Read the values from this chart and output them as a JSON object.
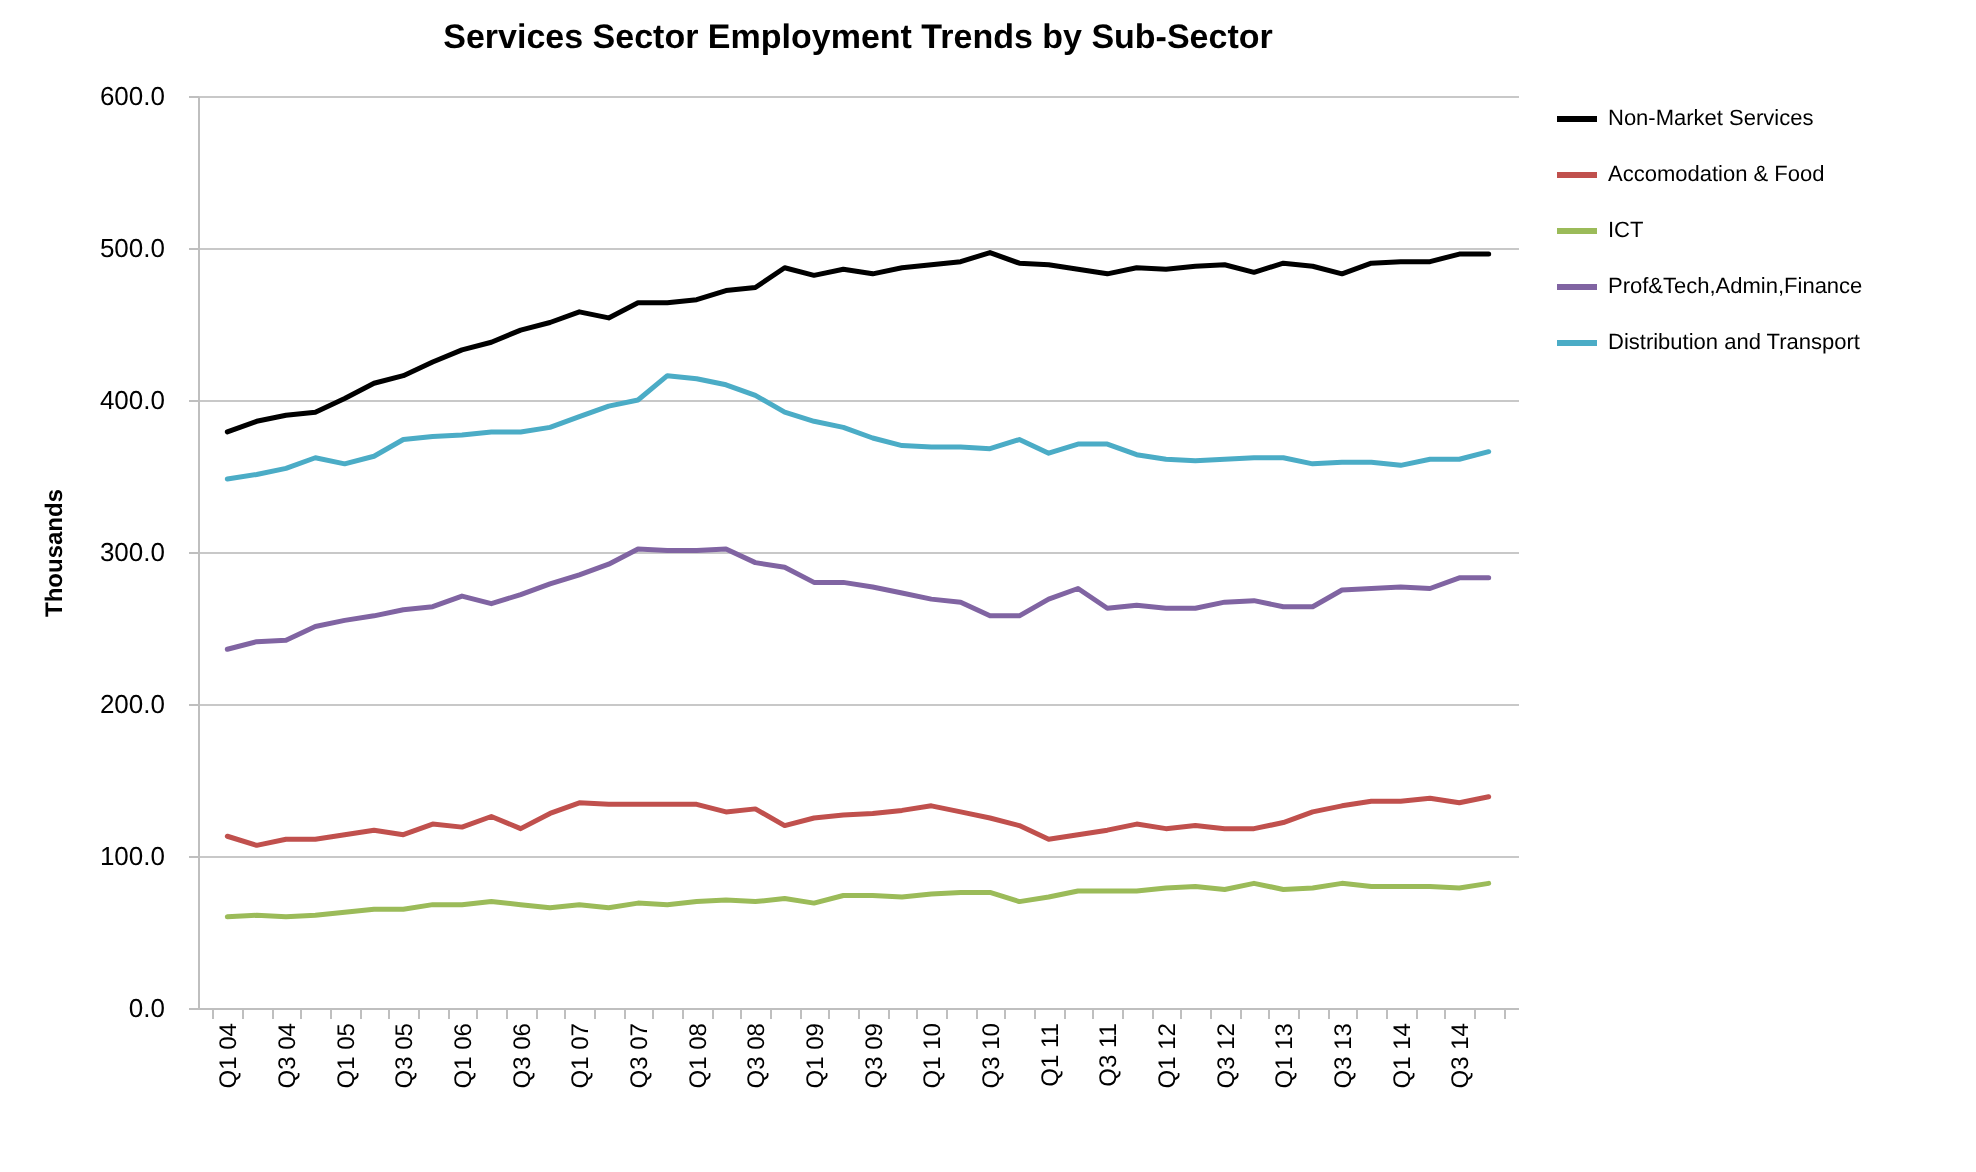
{
  "chart_data": {
    "type": "line",
    "title": "Services Sector Employment Trends by Sub-Sector",
    "ylabel": "Thousands",
    "categories": [
      "Q1 04",
      null,
      "Q3 04",
      null,
      "Q1 05",
      null,
      "Q3 05",
      null,
      "Q1 06",
      null,
      "Q3 06",
      null,
      "Q1 07",
      null,
      "Q3 07",
      null,
      "Q1 08",
      null,
      "Q3 08",
      null,
      "Q1 09",
      null,
      "Q3 09",
      null,
      "Q1 10",
      null,
      "Q3 10",
      null,
      "Q1 11",
      null,
      "Q3 11",
      null,
      "Q1 12",
      null,
      "Q3 12",
      null,
      "Q1 13",
      null,
      "Q3 13",
      null,
      "Q1 14",
      null,
      "Q3 14",
      null
    ],
    "series": [
      {
        "name": "Non-Market Services",
        "color": "#000000",
        "values": [
          379,
          386,
          390,
          392,
          401,
          411,
          416,
          425,
          433,
          438,
          446,
          451,
          458,
          454,
          464,
          464,
          466,
          472,
          474,
          487,
          482,
          486,
          483,
          487,
          489,
          491,
          497,
          490,
          489,
          486,
          483,
          487,
          486,
          488,
          489,
          484,
          490,
          488,
          483,
          490,
          491,
          491,
          496,
          496
        ]
      },
      {
        "name": "Accomodation & Food",
        "color": "#c0504d",
        "values": [
          113,
          107,
          111,
          111,
          114,
          117,
          114,
          121,
          119,
          126,
          118,
          128,
          135,
          134,
          134,
          134,
          134,
          129,
          131,
          120,
          125,
          127,
          128,
          130,
          133,
          129,
          125,
          120,
          111,
          114,
          117,
          121,
          118,
          120,
          118,
          118,
          122,
          129,
          133,
          136,
          136,
          138,
          135,
          139
        ]
      },
      {
        "name": "ICT",
        "color": "#9bbb59",
        "values": [
          60,
          61,
          60,
          61,
          63,
          65,
          65,
          68,
          68,
          70,
          68,
          66,
          68,
          66,
          69,
          68,
          70,
          71,
          70,
          72,
          69,
          74,
          74,
          73,
          75,
          76,
          76,
          70,
          73,
          77,
          77,
          77,
          79,
          80,
          78,
          82,
          78,
          79,
          82,
          80,
          80,
          80,
          79,
          82
        ]
      },
      {
        "name": "Prof&Tech,Admin,Finance",
        "color": "#8064a2",
        "values": [
          236,
          241,
          242,
          251,
          255,
          258,
          262,
          264,
          271,
          266,
          272,
          279,
          285,
          292,
          302,
          301,
          301,
          302,
          293,
          290,
          280,
          280,
          277,
          273,
          269,
          267,
          258,
          258,
          269,
          276,
          263,
          265,
          263,
          263,
          267,
          268,
          264,
          264,
          275,
          276,
          277,
          276,
          283,
          283
        ]
      },
      {
        "name": "Distribution and Transport",
        "color": "#4bacc6",
        "values": [
          348,
          351,
          355,
          362,
          358,
          363,
          374,
          376,
          377,
          379,
          379,
          382,
          389,
          396,
          400,
          416,
          414,
          410,
          403,
          392,
          386,
          382,
          375,
          370,
          369,
          369,
          368,
          374,
          365,
          371,
          371,
          364,
          361,
          360,
          361,
          362,
          362,
          358,
          359,
          359,
          357,
          361,
          361,
          366
        ]
      }
    ],
    "ylim": [
      0,
      600
    ],
    "yticks": [
      {
        "value": 0,
        "label": "0.0"
      },
      {
        "value": 100,
        "label": "100.0"
      },
      {
        "value": 200,
        "label": "200.0"
      },
      {
        "value": 300,
        "label": "300.0"
      },
      {
        "value": 400,
        "label": "400.0"
      },
      {
        "value": 500,
        "label": "500.0"
      },
      {
        "value": 600,
        "label": "600.0"
      }
    ],
    "grid": "y",
    "legend": "right",
    "line_style": "solid",
    "marker": "none"
  }
}
